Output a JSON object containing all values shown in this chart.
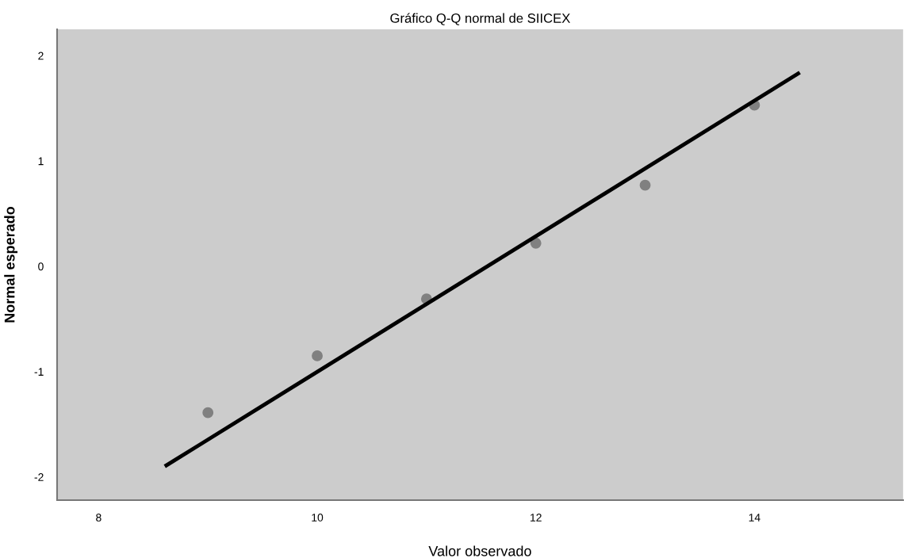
{
  "chart_data": {
    "type": "scatter",
    "title": "Gráfico Q-Q normal de SIICEX",
    "xlabel": "Valor observado",
    "ylabel": "Normal esperado",
    "xlim": [
      7.62,
      15.36
    ],
    "ylim": [
      -2.22,
      2.25
    ],
    "xticks": [
      8,
      10,
      12,
      14
    ],
    "yticks": [
      -2,
      -1,
      0,
      1,
      2
    ],
    "grid": false,
    "series": [
      {
        "marker": "circle",
        "color": "#808080",
        "x": [
          9,
          10,
          11,
          12,
          13,
          14
        ],
        "values": [
          -1.39,
          -0.85,
          -0.31,
          0.22,
          0.77,
          1.53
        ]
      },
      {
        "type": "line",
        "color": "#000000",
        "x": [
          8.62,
          14.4
        ],
        "values": [
          -1.89,
          1.83
        ],
        "marker": "none",
        "line_style": "solid"
      }
    ]
  }
}
